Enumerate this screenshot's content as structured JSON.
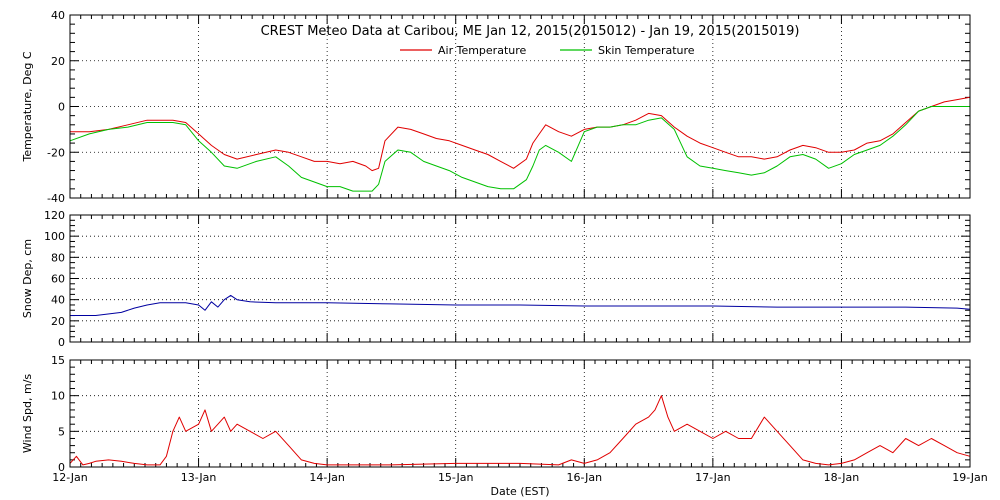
{
  "chart_data": [
    {
      "type": "line",
      "title": "CREST Meteo Data at Caribou, ME   Jan 12, 2015(2015012) - Jan 19, 2015(2015019)",
      "ylabel": "Temperature, Deg C",
      "ylim": [
        -40,
        40
      ],
      "yticks": [
        "-40",
        "-20",
        "0",
        "20",
        "40"
      ],
      "xlim": [
        0,
        7
      ],
      "grid": true,
      "legend_position": "top-center",
      "series": [
        {
          "name": "Air Temperature",
          "color": "#e00000",
          "x": [
            0,
            0.15,
            0.3,
            0.45,
            0.6,
            0.7,
            0.8,
            0.9,
            1.0,
            1.1,
            1.2,
            1.3,
            1.45,
            1.6,
            1.7,
            1.8,
            1.9,
            2.0,
            2.1,
            2.2,
            2.3,
            2.35,
            2.4,
            2.45,
            2.55,
            2.65,
            2.75,
            2.85,
            2.95,
            3.05,
            3.15,
            3.25,
            3.35,
            3.45,
            3.55,
            3.6,
            3.65,
            3.7,
            3.8,
            3.9,
            4.0,
            4.1,
            4.2,
            4.3,
            4.4,
            4.5,
            4.6,
            4.7,
            4.8,
            4.9,
            5.0,
            5.1,
            5.2,
            5.3,
            5.4,
            5.5,
            5.6,
            5.7,
            5.8,
            5.9,
            6.0,
            6.1,
            6.2,
            6.3,
            6.4,
            6.5,
            6.6,
            6.7,
            6.8,
            6.9,
            7.0
          ],
          "values": [
            -11,
            -11,
            -10,
            -8,
            -6,
            -6,
            -6,
            -7,
            -12,
            -17,
            -21,
            -23,
            -21,
            -19,
            -20,
            -22,
            -24,
            -24,
            -25,
            -24,
            -26,
            -28,
            -27,
            -15,
            -9,
            -10,
            -12,
            -14,
            -15,
            -17,
            -19,
            -21,
            -24,
            -27,
            -23,
            -16,
            -12,
            -8,
            -11,
            -13,
            -10,
            -9,
            -9,
            -8,
            -6,
            -3,
            -4,
            -9,
            -13,
            -16,
            -18,
            -20,
            -22,
            -22,
            -23,
            -22,
            -19,
            -17,
            -18,
            -20,
            -20,
            -19,
            -16,
            -15,
            -12,
            -7,
            -2,
            0,
            2,
            3,
            4
          ]
        },
        {
          "name": "Skin Temperature",
          "color": "#00c000",
          "x": [
            0,
            0.15,
            0.3,
            0.45,
            0.6,
            0.7,
            0.8,
            0.9,
            1.0,
            1.1,
            1.2,
            1.3,
            1.45,
            1.6,
            1.7,
            1.8,
            1.9,
            2.0,
            2.1,
            2.2,
            2.3,
            2.35,
            2.4,
            2.45,
            2.55,
            2.65,
            2.75,
            2.85,
            2.95,
            3.05,
            3.15,
            3.25,
            3.35,
            3.45,
            3.55,
            3.6,
            3.65,
            3.7,
            3.8,
            3.9,
            4.0,
            4.1,
            4.2,
            4.3,
            4.4,
            4.5,
            4.6,
            4.7,
            4.8,
            4.9,
            5.0,
            5.1,
            5.2,
            5.3,
            5.4,
            5.5,
            5.6,
            5.7,
            5.8,
            5.9,
            6.0,
            6.1,
            6.2,
            6.3,
            6.4,
            6.5,
            6.6,
            6.7,
            6.8,
            6.9,
            7.0
          ],
          "values": [
            -15,
            -12,
            -10,
            -9,
            -7,
            -7,
            -7,
            -8,
            -15,
            -20,
            -26,
            -27,
            -24,
            -22,
            -26,
            -31,
            -33,
            -35,
            -35,
            -37,
            -37,
            -37,
            -34,
            -24,
            -19,
            -20,
            -24,
            -26,
            -28,
            -31,
            -33,
            -35,
            -36,
            -36,
            -32,
            -26,
            -19,
            -17,
            -20,
            -24,
            -11,
            -9,
            -9,
            -8,
            -8,
            -6,
            -5,
            -10,
            -22,
            -26,
            -27,
            -28,
            -29,
            -30,
            -29,
            -26,
            -22,
            -21,
            -23,
            -27,
            -25,
            -21,
            -19,
            -17,
            -13,
            -8,
            -2,
            0,
            0,
            0,
            0
          ]
        }
      ]
    },
    {
      "type": "line",
      "ylabel": "Snow Dep, cm",
      "ylim": [
        0,
        120
      ],
      "yticks": [
        "0",
        "20",
        "40",
        "60",
        "80",
        "100",
        "120"
      ],
      "xlim": [
        0,
        7
      ],
      "grid": true,
      "series": [
        {
          "color": "#0000a0",
          "x": [
            0,
            0.2,
            0.4,
            0.5,
            0.6,
            0.7,
            0.8,
            0.9,
            1.0,
            1.05,
            1.1,
            1.15,
            1.2,
            1.25,
            1.3,
            1.4,
            1.6,
            1.8,
            2.0,
            2.5,
            3.0,
            3.5,
            4.0,
            4.5,
            5.0,
            5.5,
            6.0,
            6.5,
            6.9,
            7.0
          ],
          "values": [
            25,
            25,
            28,
            32,
            35,
            37,
            37,
            37,
            35,
            30,
            38,
            33,
            40,
            44,
            40,
            38,
            37,
            37,
            37,
            36,
            35,
            35,
            34,
            34,
            34,
            33,
            33,
            33,
            32,
            31
          ]
        }
      ]
    },
    {
      "type": "line",
      "ylabel": "Wind Spd, m/s",
      "xlabel": "Date (EST)",
      "ylim": [
        0,
        15
      ],
      "yticks": [
        "0",
        "5",
        "10",
        "15"
      ],
      "x_ticklabels": [
        "12-Jan",
        "13-Jan",
        "14-Jan",
        "15-Jan",
        "16-Jan",
        "17-Jan",
        "18-Jan",
        "19-Jan"
      ],
      "xlim": [
        0,
        7
      ],
      "grid": true,
      "series": [
        {
          "color": "#e00000",
          "x": [
            0,
            0.05,
            0.1,
            0.15,
            0.2,
            0.3,
            0.4,
            0.5,
            0.6,
            0.7,
            0.75,
            0.8,
            0.85,
            0.9,
            1.0,
            1.05,
            1.1,
            1.15,
            1.2,
            1.25,
            1.3,
            1.4,
            1.5,
            1.6,
            1.7,
            1.8,
            1.9,
            2.0,
            2.5,
            3.0,
            3.5,
            3.8,
            3.9,
            4.0,
            4.1,
            4.2,
            4.3,
            4.4,
            4.5,
            4.55,
            4.6,
            4.65,
            4.7,
            4.8,
            4.9,
            5.0,
            5.1,
            5.2,
            5.3,
            5.4,
            5.5,
            5.6,
            5.7,
            5.8,
            5.9,
            6.0,
            6.1,
            6.2,
            6.3,
            6.4,
            6.5,
            6.6,
            6.7,
            6.8,
            6.9,
            7.0
          ],
          "values": [
            0.5,
            1.5,
            0.3,
            0.5,
            0.8,
            1,
            0.8,
            0.5,
            0.3,
            0.3,
            1.5,
            5,
            7,
            5,
            6,
            8,
            5,
            6,
            7,
            5,
            6,
            5,
            4,
            5,
            3,
            1,
            0.5,
            0.3,
            0.3,
            0.5,
            0.5,
            0.3,
            1,
            0.5,
            1,
            2,
            4,
            6,
            7,
            8,
            10,
            7,
            5,
            6,
            5,
            4,
            5,
            4,
            4,
            7,
            5,
            3,
            1,
            0.5,
            0.3,
            0.5,
            1,
            2,
            3,
            2,
            4,
            3,
            4,
            3,
            2,
            1.5
          ]
        }
      ]
    }
  ]
}
